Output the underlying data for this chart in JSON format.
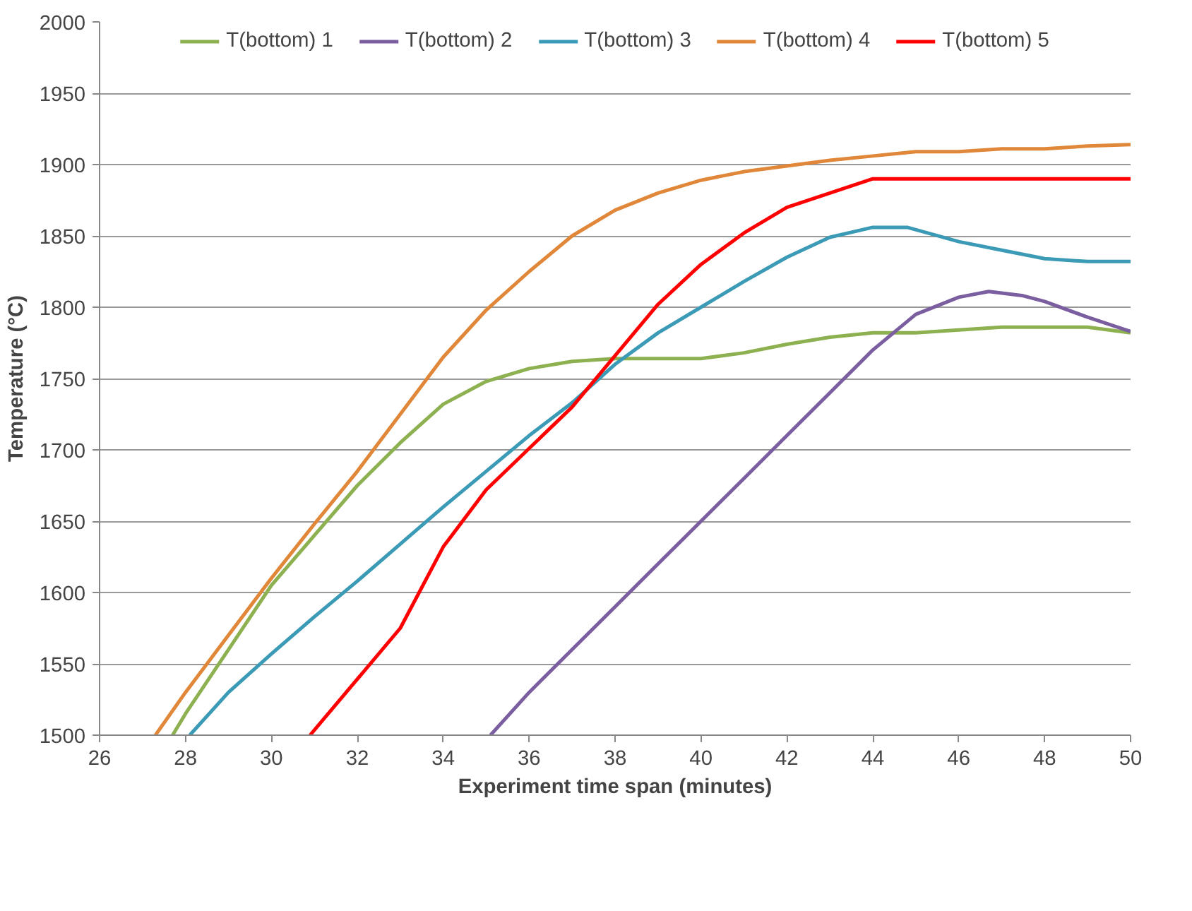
{
  "chart_data": {
    "type": "line",
    "xlabel": "Experiment time span (minutes)",
    "ylabel": "Temperature (°C)",
    "xlim": [
      26,
      50
    ],
    "xticks": [
      26,
      28,
      30,
      32,
      34,
      36,
      38,
      40,
      42,
      44,
      46,
      48,
      50
    ],
    "ylim": [
      1500,
      2000
    ],
    "yticks": [
      1500,
      1550,
      1600,
      1650,
      1700,
      1750,
      1800,
      1850,
      1900,
      1950,
      2000
    ],
    "grid": "y",
    "legend": "top",
    "series": [
      {
        "name": "T(bottom) 1",
        "color": "#8db050",
        "x": [
          27.7,
          28,
          29,
          30,
          31,
          32,
          33,
          34,
          35,
          36,
          37,
          38,
          39,
          40,
          41,
          42,
          43,
          44,
          45,
          46,
          47,
          48,
          49,
          50
        ],
        "values": [
          1500,
          1515,
          1560,
          1605,
          1640,
          1675,
          1705,
          1732,
          1748,
          1757,
          1762,
          1764,
          1764,
          1764,
          1768,
          1774,
          1779,
          1782,
          1782,
          1784,
          1786,
          1786,
          1786,
          1782
        ]
      },
      {
        "name": "T(bottom) 2",
        "color": "#7a5ea0",
        "x": [
          35.1,
          36,
          37,
          38,
          39,
          40,
          41,
          42,
          43,
          44,
          45,
          46,
          46.7,
          47.5,
          48,
          49,
          50
        ],
        "values": [
          1500,
          1530,
          1560,
          1590,
          1620,
          1650,
          1680,
          1710,
          1740,
          1770,
          1795,
          1807,
          1811,
          1808,
          1804,
          1793,
          1783
        ]
      },
      {
        "name": "T(bottom) 3",
        "color": "#3b9ab5",
        "x": [
          28.1,
          29,
          30,
          31,
          32,
          33,
          34,
          35,
          36,
          37,
          38,
          39,
          40,
          41,
          42,
          43,
          44,
          44.8,
          46,
          47,
          48,
          49,
          50
        ],
        "values": [
          1500,
          1530,
          1557,
          1583,
          1608,
          1634,
          1660,
          1685,
          1710,
          1733,
          1760,
          1782,
          1800,
          1818,
          1835,
          1849,
          1856,
          1856,
          1846,
          1840,
          1834,
          1832,
          1832
        ]
      },
      {
        "name": "T(bottom) 4",
        "color": "#e0873a",
        "x": [
          27.3,
          28,
          29,
          30,
          31,
          32,
          33,
          34,
          35,
          36,
          37,
          38,
          39,
          40,
          41,
          42,
          43,
          44,
          45,
          46,
          47,
          48,
          49,
          50
        ],
        "values": [
          1500,
          1530,
          1570,
          1610,
          1648,
          1685,
          1725,
          1765,
          1798,
          1825,
          1850,
          1868,
          1880,
          1889,
          1895,
          1899,
          1903,
          1906,
          1909,
          1909,
          1911,
          1911,
          1913,
          1914
        ]
      },
      {
        "name": "T(bottom) 5",
        "color": "#ff0000",
        "x": [
          30.9,
          33,
          34,
          35,
          37,
          39,
          40,
          41,
          42,
          44,
          50
        ],
        "values": [
          1500,
          1575,
          1632,
          1672,
          1730,
          1802,
          1830,
          1852,
          1870,
          1890,
          1890
        ]
      }
    ]
  }
}
